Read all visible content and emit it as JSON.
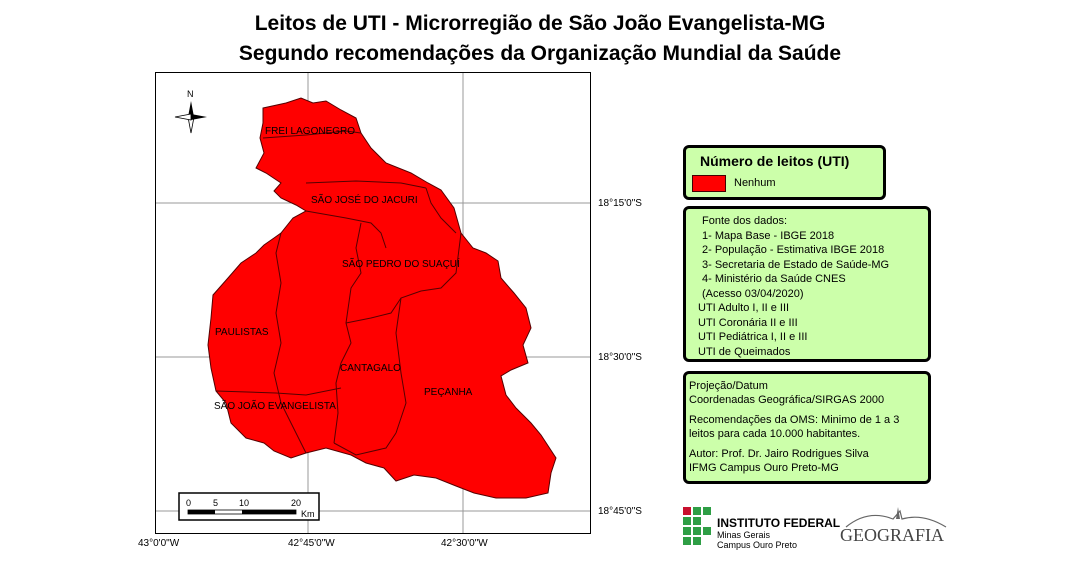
{
  "title_line1": "Leitos de UTI - Microrregião de São João Evangelista-MG",
  "title_line2": "Segundo recomendações da Organização Mundial da Saúde",
  "north_label": "N",
  "coords": {
    "lat_1": "18°15'0\"S",
    "lat_2": "18°30'0\"S",
    "lat_3": "18°45'0\"S",
    "lon_1": "43°0'0\"W",
    "lon_2": "42°45'0\"W",
    "lon_3": "42°30'0\"W"
  },
  "municipalities": [
    "FREI LAGONEGRO",
    "SÃO JOSÉ DO JACURI",
    "SÃO PEDRO DO SUAÇUÍ",
    "PAULISTAS",
    "CANTAGALO",
    "SÃO JOÃO EVANGELISTA",
    "PEÇANHA"
  ],
  "map_fill_color": "#ff0000",
  "scale": {
    "ticks": [
      "0",
      "5",
      "10",
      "20"
    ],
    "unit": "Km"
  },
  "legend": {
    "title": "Número de leitos (UTI)",
    "item_label": "Nenhum",
    "item_color": "#ff0000"
  },
  "source": {
    "lines": [
      "Fonte dos dados:",
      "1- Mapa Base - IBGE 2018",
      "2- População - Estimativa IBGE 2018",
      "3- Secretaria de Estado de Saúde-MG",
      "4- Ministério da Saúde CNES",
      "(Acesso 03/04/2020)",
      "UTI Adulto I, II e III",
      "UTI Coronária II e III",
      "UTI Pediátrica I, II e III",
      "UTI de Queimados"
    ]
  },
  "notes": {
    "projection_1": "Projeção/Datum",
    "projection_2": "Coordenadas Geográfica/SIRGAS 2000",
    "oms_1": "Recomendações da OMS: Minimo de 1 a 3",
    "oms_2": "leitos para cada 10.000 habitantes.",
    "author_1": "Autor: Prof. Dr. Jairo Rodrigues Silva",
    "author_2": "IFMG Campus Ouro Preto-MG"
  },
  "logos": {
    "ifmg_1": "INSTITUTO FEDERAL",
    "ifmg_2": "Minas Gerais",
    "ifmg_3": "Campus Ouro Preto",
    "geo": "GEOGRAFIA"
  }
}
